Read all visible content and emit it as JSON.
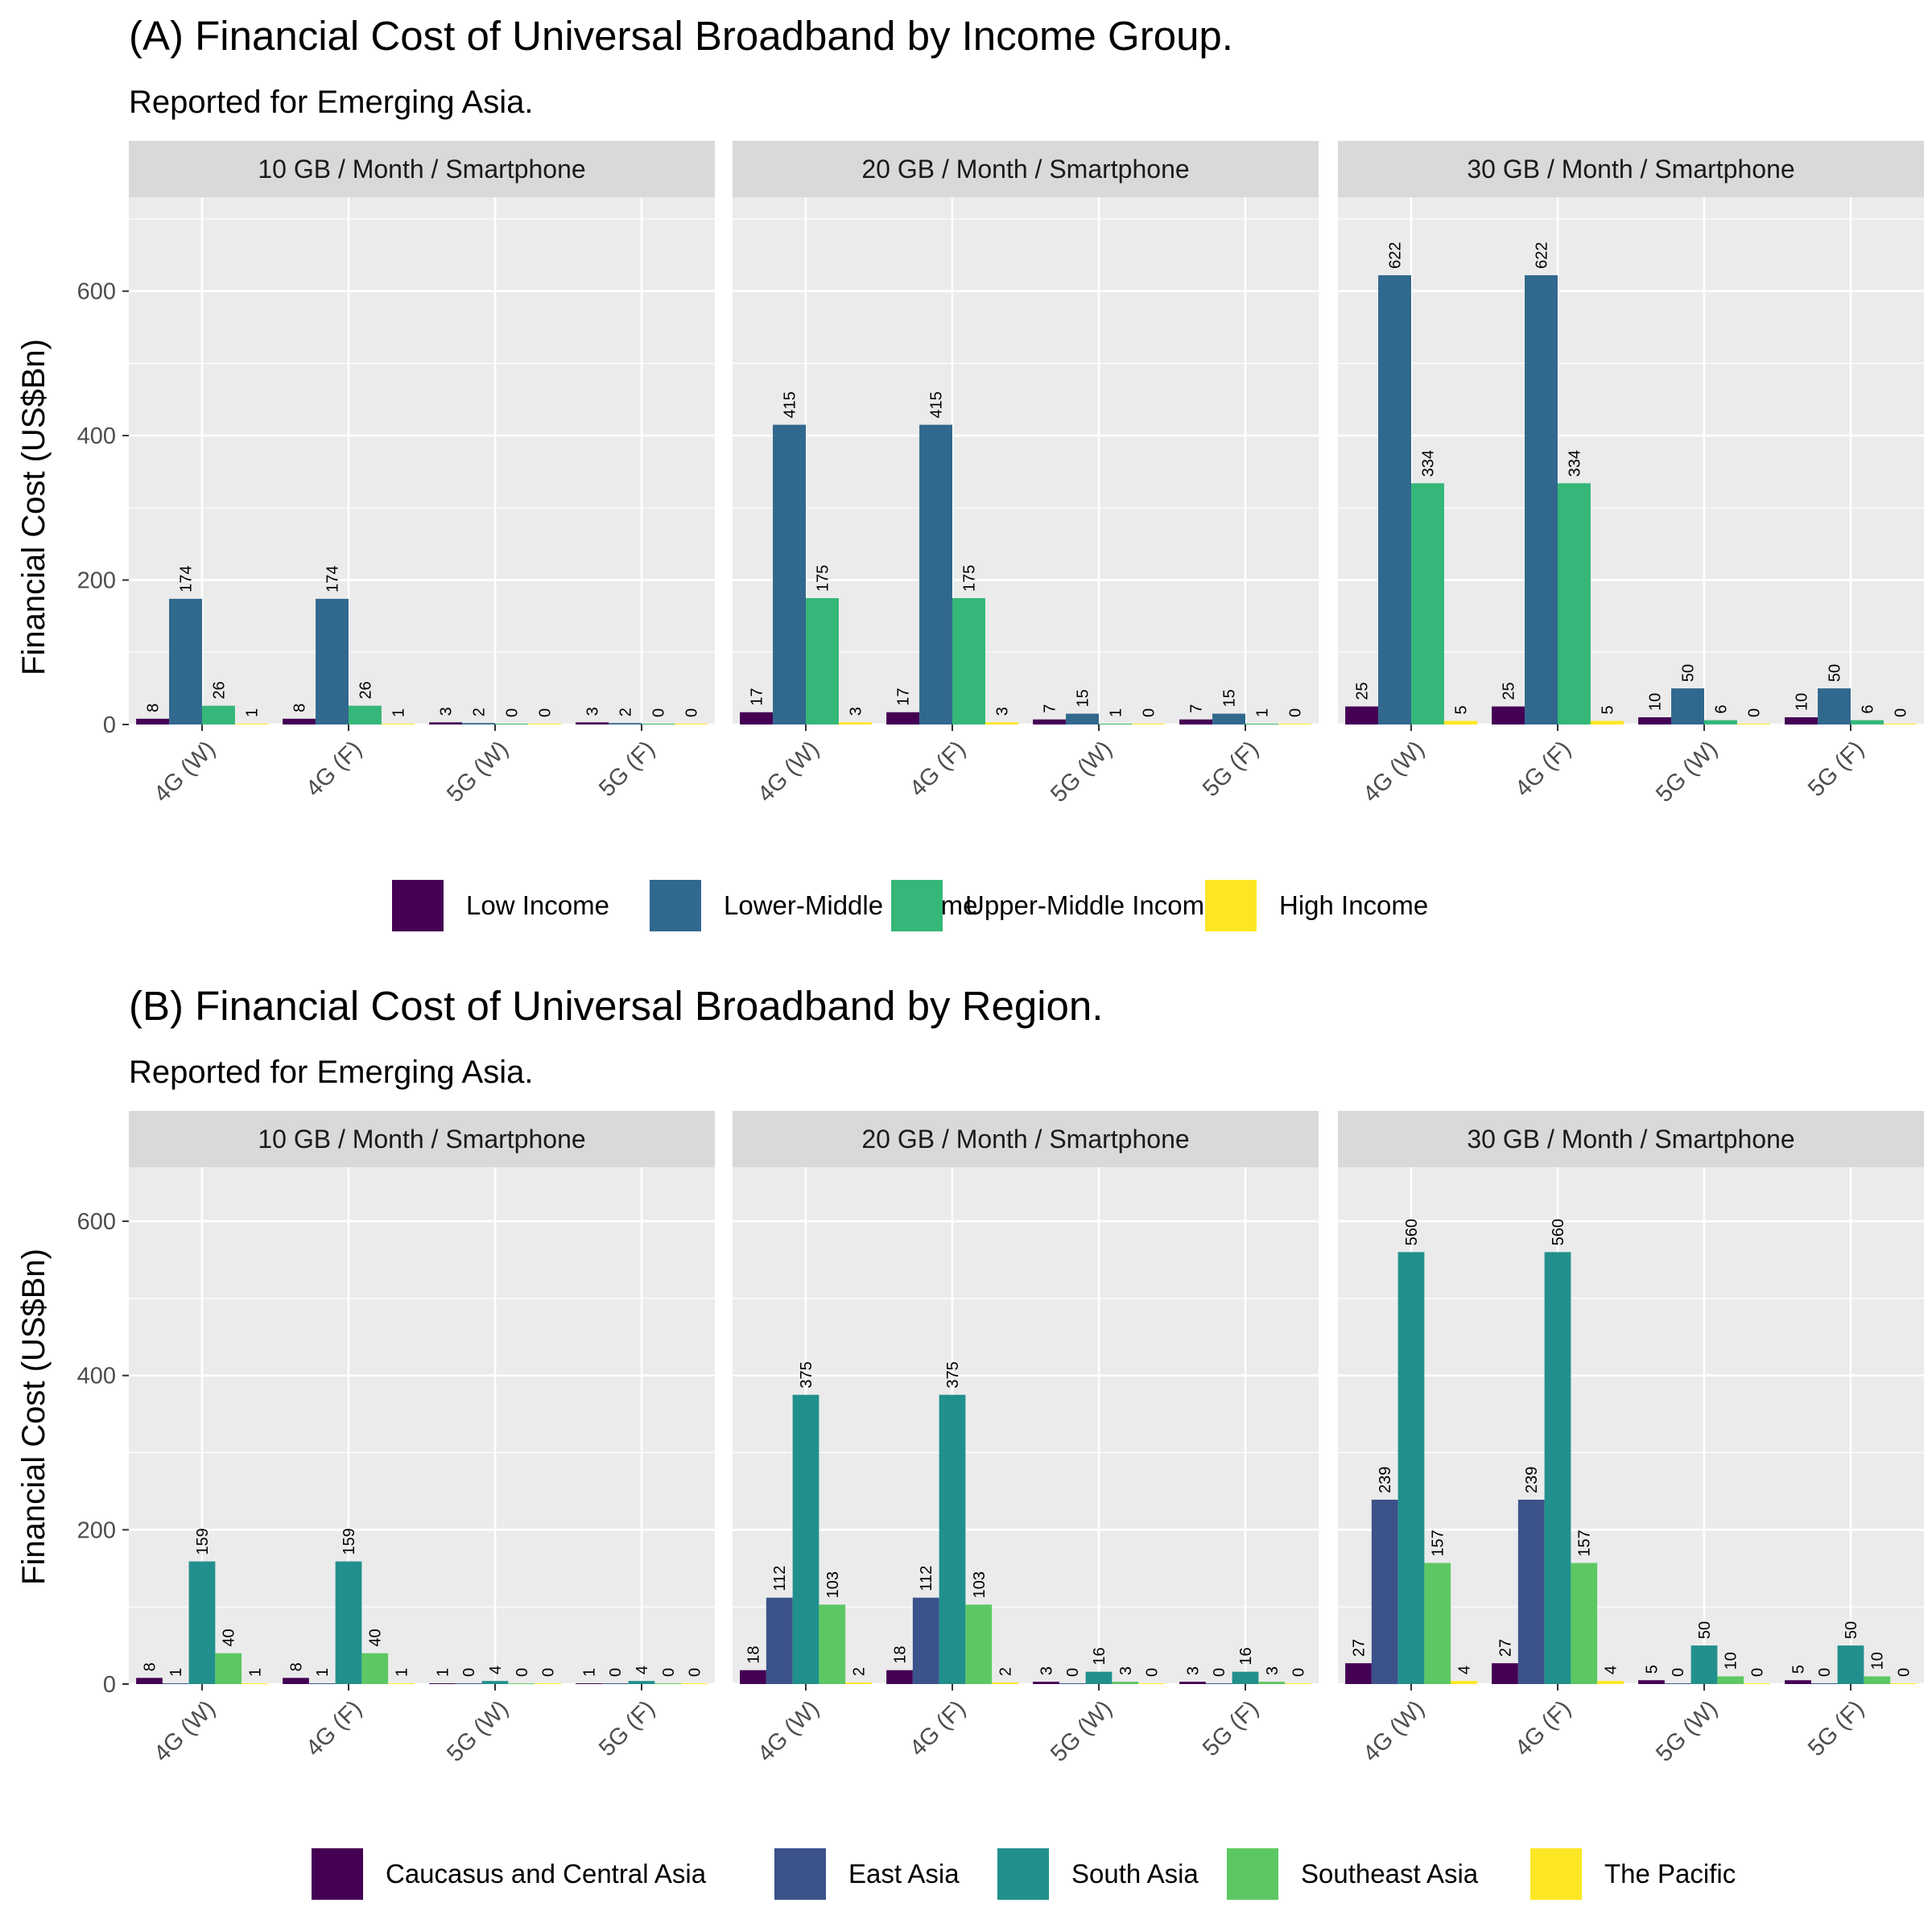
{
  "chart_data": [
    {
      "type": "bar",
      "title": "(A) Financial Cost of Universal Broadband by Income Group.",
      "subtitle": "Reported for Emerging Asia.",
      "ylabel": "Financial Cost (US$Bn)",
      "xlabel": "",
      "ylim": [
        0,
        730
      ],
      "yticks": [
        0,
        200,
        400,
        600
      ],
      "grid": true,
      "legend_position": "bottom",
      "categories": [
        "4G (W)",
        "4G (F)",
        "5G (W)",
        "5G (F)"
      ],
      "series_names": [
        "Low Income",
        "Lower-Middle Income",
        "Upper-Middle Income",
        "High Income"
      ],
      "colors": [
        "#440154",
        "#31688E",
        "#35B779",
        "#FDE725"
      ],
      "panels": [
        {
          "label": "10 GB / Month / Smartphone",
          "values": [
            [
              8,
              174,
              26,
              1
            ],
            [
              8,
              174,
              26,
              1
            ],
            [
              3,
              2,
              0,
              0
            ],
            [
              3,
              2,
              0,
              0
            ]
          ]
        },
        {
          "label": "20 GB / Month / Smartphone",
          "values": [
            [
              17,
              415,
              175,
              3
            ],
            [
              17,
              415,
              175,
              3
            ],
            [
              7,
              15,
              1,
              0
            ],
            [
              7,
              15,
              1,
              0
            ]
          ]
        },
        {
          "label": "30 GB / Month / Smartphone",
          "values": [
            [
              25,
              622,
              334,
              5
            ],
            [
              25,
              622,
              334,
              5
            ],
            [
              10,
              50,
              6,
              0
            ],
            [
              10,
              50,
              6,
              0
            ]
          ]
        }
      ]
    },
    {
      "type": "bar",
      "title": "(B) Financial Cost of Universal Broadband by Region.",
      "subtitle": "Reported for Emerging Asia.",
      "ylabel": "Financial Cost (US$Bn)",
      "xlabel": "",
      "ylim": [
        0,
        670
      ],
      "yticks": [
        0,
        200,
        400,
        600
      ],
      "grid": true,
      "legend_position": "bottom",
      "categories": [
        "4G (W)",
        "4G (F)",
        "5G (W)",
        "5G (F)"
      ],
      "series_names": [
        "Caucasus and Central Asia",
        "East Asia",
        "South Asia",
        "Southeast Asia",
        "The Pacific"
      ],
      "colors": [
        "#440154",
        "#3B528B",
        "#21908C",
        "#5DC863",
        "#FDE725"
      ],
      "panels": [
        {
          "label": "10 GB / Month / Smartphone",
          "values": [
            [
              8,
              1,
              159,
              40,
              1
            ],
            [
              8,
              1,
              159,
              40,
              1
            ],
            [
              1,
              0,
              4,
              0,
              0
            ],
            [
              1,
              0,
              4,
              0,
              0
            ]
          ]
        },
        {
          "label": "20 GB / Month / Smartphone",
          "values": [
            [
              18,
              112,
              375,
              103,
              2
            ],
            [
              18,
              112,
              375,
              103,
              2
            ],
            [
              3,
              0,
              16,
              3,
              0
            ],
            [
              3,
              0,
              16,
              3,
              0
            ]
          ]
        },
        {
          "label": "30 GB / Month / Smartphone",
          "values": [
            [
              27,
              239,
              560,
              157,
              4
            ],
            [
              27,
              239,
              560,
              157,
              4
            ],
            [
              5,
              0,
              50,
              10,
              0
            ],
            [
              5,
              0,
              50,
              10,
              0
            ]
          ]
        }
      ]
    }
  ]
}
